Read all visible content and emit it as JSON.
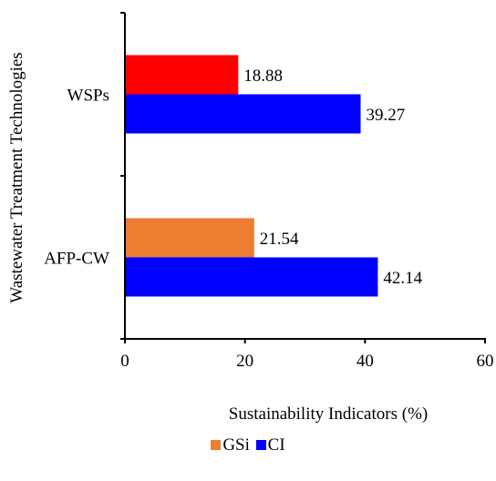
{
  "chart_data": {
    "type": "bar",
    "orientation": "horizontal",
    "title": "",
    "xlabel": "Sustainability Indicators (%)",
    "ylabel": "Wastewater Treatment Technologies",
    "xlim": [
      0,
      60
    ],
    "xticks": [
      0,
      20,
      40,
      60
    ],
    "categories": [
      "WSPs",
      "AFP-CW"
    ],
    "series": [
      {
        "name": "GSi",
        "values": [
          18.88,
          21.54
        ],
        "colors": [
          "#ff0000",
          "#ed7d31"
        ]
      },
      {
        "name": "CI",
        "values": [
          39.27,
          42.14
        ],
        "colors": [
          "#0000ff",
          "#0000ff"
        ]
      }
    ],
    "data_labels": [
      [
        "18.88",
        "21.54"
      ],
      [
        "39.27",
        "42.14"
      ]
    ],
    "grid": false,
    "legend": {
      "position": "bottom",
      "entries": [
        {
          "label": "GSi",
          "color": "#ed7d31"
        },
        {
          "label": "CI",
          "color": "#0000ff"
        }
      ]
    }
  }
}
